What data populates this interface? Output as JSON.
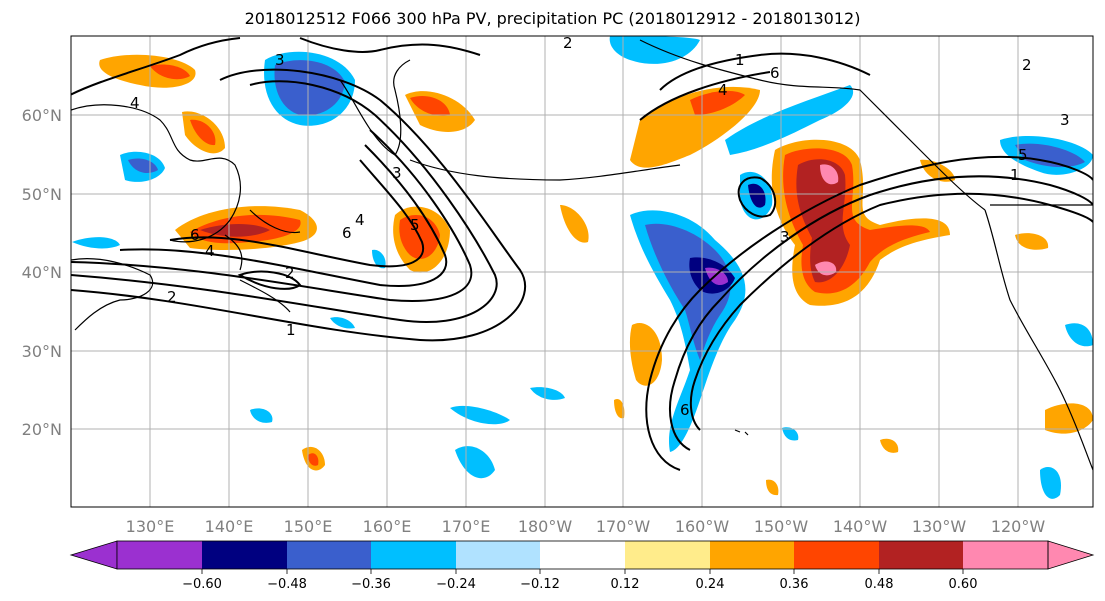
{
  "title": "2018012512 F066 300 hPa PV, precipitation PC (2018012912 - 2018013012)",
  "lat_labels": [
    "60°N",
    "50°N",
    "40°N",
    "30°N",
    "20°N"
  ],
  "lon_labels": [
    "130°E",
    "140°E",
    "150°E",
    "160°E",
    "170°E",
    "180°W",
    "170°W",
    "160°W",
    "150°W",
    "140°W",
    "130°W",
    "120°W"
  ],
  "contour_labels": [
    "6",
    "4",
    "2",
    "2",
    "1",
    "6",
    "4",
    "3",
    "5",
    "4",
    "3",
    "2",
    "1",
    "6",
    "4",
    "3",
    "5",
    "1",
    "2",
    "6",
    "3"
  ],
  "colorbar": {
    "ticks": [
      "−0.60",
      "−0.48",
      "−0.36",
      "−0.24",
      "−0.12",
      "0.12",
      "0.24",
      "0.36",
      "0.48",
      "0.60"
    ],
    "colors": [
      "#9b30d0",
      "#000080",
      "#3a5fcd",
      "#00bfff",
      "#b0e2ff",
      "#ffffff",
      "#ffec8b",
      "#ffa500",
      "#ff4500",
      "#b22222",
      "#ff88b0"
    ]
  },
  "colors": {
    "grid": "#b0b0b0",
    "coast": "#000000",
    "contour": "#000000"
  }
}
